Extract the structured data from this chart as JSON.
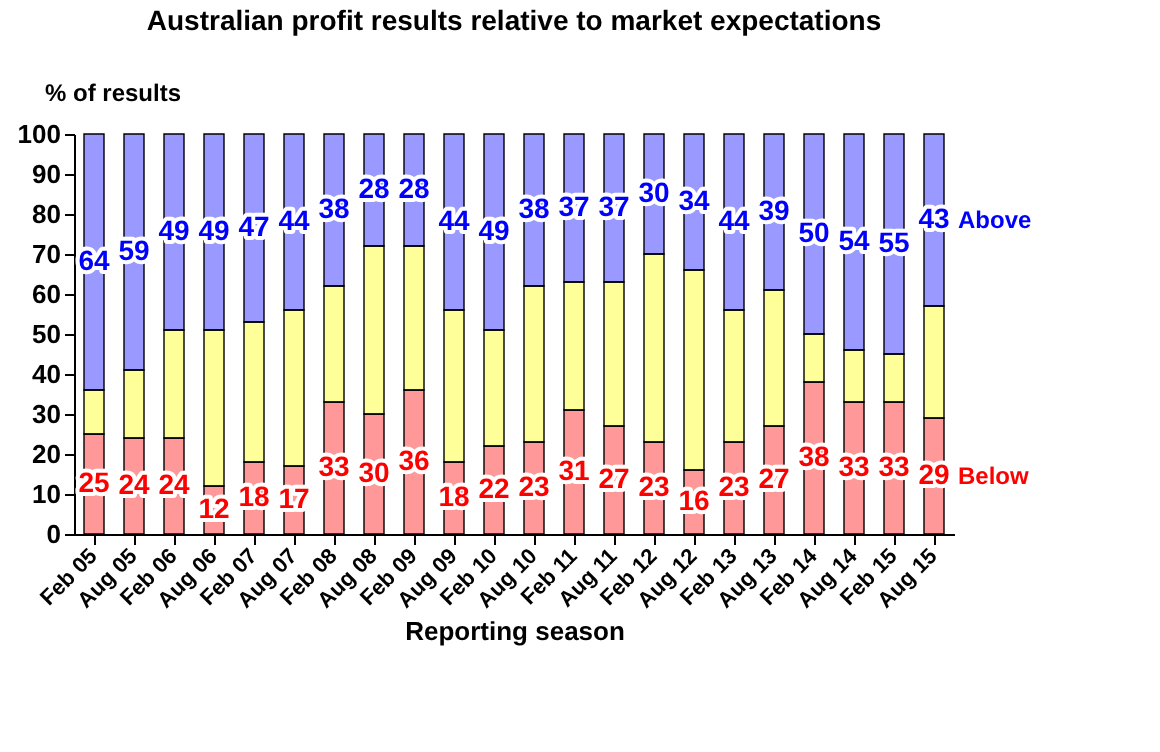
{
  "chart_data": {
    "type": "bar",
    "title": "Australian profit results relative to market expectations",
    "ylabel": "% of results",
    "xlabel": "Reporting season",
    "categories": [
      "Feb 05",
      "Aug 05",
      "Feb 06",
      "Aug 06",
      "Feb 07",
      "Aug 07",
      "Feb 08",
      "Aug 08",
      "Feb 09",
      "Aug 09",
      "Feb 10",
      "Aug 10",
      "Feb 11",
      "Aug 11",
      "Feb 12",
      "Aug 12",
      "Feb 13",
      "Aug 13",
      "Feb 14",
      "Aug 14",
      "Feb 15",
      "Aug 15"
    ],
    "stacked": true,
    "ylim": [
      0,
      100
    ],
    "yticks": [
      0,
      10,
      20,
      30,
      40,
      50,
      60,
      70,
      80,
      90,
      100
    ],
    "grid": false,
    "series": [
      {
        "name": "Below",
        "color": "#ff0000",
        "values": [
          25,
          24,
          24,
          12,
          18,
          17,
          33,
          30,
          36,
          18,
          22,
          23,
          31,
          27,
          23,
          16,
          23,
          27,
          38,
          33,
          33,
          29
        ],
        "value_labels": [
          "25",
          "24",
          "24",
          "12",
          "18",
          "17",
          "33",
          "30",
          "36",
          "18",
          "22",
          "23",
          "31",
          "27",
          "23",
          "16",
          "23",
          "27",
          "38",
          "33",
          "33",
          "29"
        ]
      },
      {
        "color": "#ffff00",
        "values": [
          11,
          17,
          27,
          39,
          35,
          39,
          29,
          42,
          36,
          38,
          29,
          39,
          32,
          36,
          47,
          50,
          33,
          34,
          12,
          13,
          12,
          28
        ]
      },
      {
        "name": "Above",
        "color": "#0000ff",
        "values": [
          64,
          59,
          49,
          49,
          47,
          44,
          38,
          28,
          28,
          44,
          49,
          38,
          37,
          37,
          30,
          34,
          44,
          39,
          50,
          54,
          55,
          43
        ],
        "value_labels": [
          "64",
          "59",
          "49",
          "49",
          "47",
          "44",
          "38",
          "28",
          "28",
          "44",
          "49",
          "38",
          "37",
          "37",
          "30",
          "34",
          "44",
          "39",
          "50",
          "54",
          "55",
          "43"
        ]
      }
    ]
  }
}
